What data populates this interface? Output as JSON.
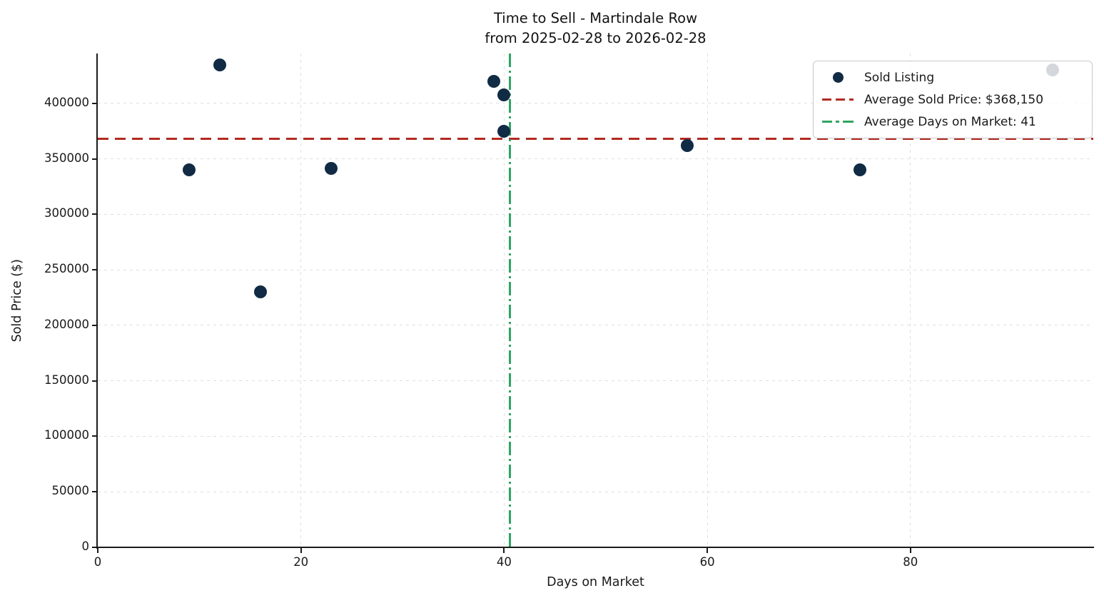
{
  "chart_data": {
    "type": "scatter",
    "title": "Time to Sell - Martindale Row",
    "subtitle": "from 2025-02-28 to 2026-02-28",
    "xlabel": "Days on Market",
    "ylabel": "Sold Price ($)",
    "xlim": [
      0,
      98
    ],
    "ylim": [
      0,
      445000
    ],
    "x_ticks": [
      0,
      20,
      40,
      60,
      80
    ],
    "y_ticks": [
      0,
      50000,
      100000,
      150000,
      200000,
      250000,
      300000,
      350000,
      400000
    ],
    "grid": true,
    "points": [
      {
        "days_on_market": 12,
        "sold_price": 435000
      },
      {
        "days_on_market": 39,
        "sold_price": 420000
      },
      {
        "days_on_market": 40,
        "sold_price": 408000
      },
      {
        "days_on_market": 40,
        "sold_price": 375000
      },
      {
        "days_on_market": 9,
        "sold_price": 340000
      },
      {
        "days_on_market": 23,
        "sold_price": 341500
      },
      {
        "days_on_market": 58,
        "sold_price": 362000
      },
      {
        "days_on_market": 75,
        "sold_price": 340000
      },
      {
        "days_on_market": 16,
        "sold_price": 230000
      },
      {
        "days_on_market": 94,
        "sold_price": 430000
      }
    ],
    "average_sold_price": 368150,
    "average_days_on_market": 40.6,
    "legend": {
      "position": "upper right",
      "items": [
        {
          "label": "Sold Listing",
          "marker": "dot",
          "color": "#112b44"
        },
        {
          "label": "Average Sold Price: $368,150",
          "marker": "dashed-line",
          "color": "#b22a22"
        },
        {
          "label": "Average Days on Market: 41",
          "marker": "dashdot-line",
          "color": "#2ea562"
        }
      ]
    },
    "colors": {
      "point": "#112b44",
      "average_price_line": "#b22a22",
      "average_days_line": "#2ea562",
      "grid": "#d9d9d9",
      "axis": "#1b1b1b",
      "text": "#1a1a1a"
    }
  }
}
